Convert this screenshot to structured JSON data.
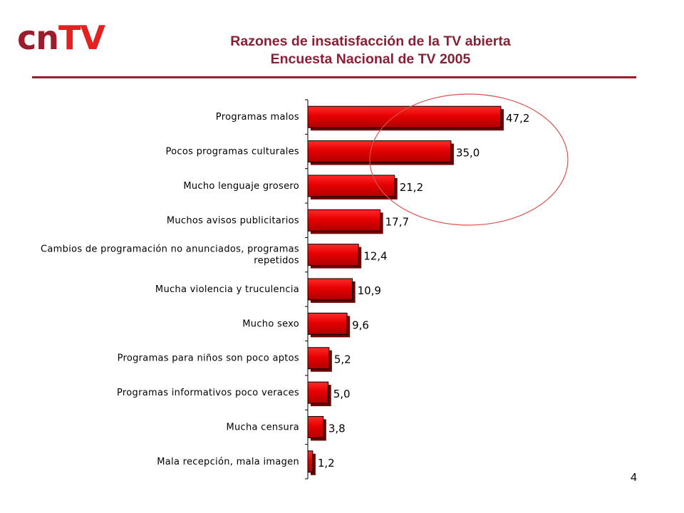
{
  "logo": {
    "part1": "cn",
    "part2": "TV"
  },
  "header": {
    "title_line1": "Razones de insatisfacción de la TV abierta",
    "title_line2": "Encuesta Nacional de TV 2005"
  },
  "page_number": "4",
  "colors": {
    "bar_fill": "#e60000",
    "bar_dark": "#6e0000",
    "title": "#8a2036",
    "rule": "#9b1c2c",
    "highlight_circle": "#d9534f"
  },
  "chart_data": {
    "type": "bar",
    "orientation": "horizontal",
    "categories": [
      "Programas malos",
      "Pocos programas culturales",
      "Mucho lenguaje grosero",
      "Muchos avisos publicitarios",
      "Cambios de programación no anunciados, programas repetidos",
      "Mucha violencia y truculencia",
      "Mucho sexo",
      "Programas para niños son poco aptos",
      "Programas informativos poco veraces",
      "Mucha censura",
      "Mala recepción, mala imagen"
    ],
    "category_lines": [
      [
        "Programas malos"
      ],
      [
        "Pocos programas culturales"
      ],
      [
        "Mucho lenguaje grosero"
      ],
      [
        "Muchos avisos publicitarios"
      ],
      [
        "Cambios de programación no anunciados, programas",
        "repetidos"
      ],
      [
        "Mucha violencia y truculencia"
      ],
      [
        "Mucho sexo"
      ],
      [
        "Programas para niños son poco aptos"
      ],
      [
        "Programas informativos poco veraces"
      ],
      [
        "Mucha censura"
      ],
      [
        "Mala recepción, mala imagen"
      ]
    ],
    "values": [
      47.2,
      35.0,
      21.2,
      17.7,
      12.4,
      10.9,
      9.6,
      5.2,
      5.0,
      3.8,
      1.2
    ],
    "value_labels": [
      "47,2",
      "35,0",
      "21,2",
      "17,7",
      "12,4",
      "10,9",
      "9,6",
      "5,2",
      "5,0",
      "3,8",
      "1,2"
    ],
    "xlim": [
      0,
      47.2
    ],
    "grid": false,
    "legend": "none",
    "annotation": "circle highlighting the top four bars"
  }
}
